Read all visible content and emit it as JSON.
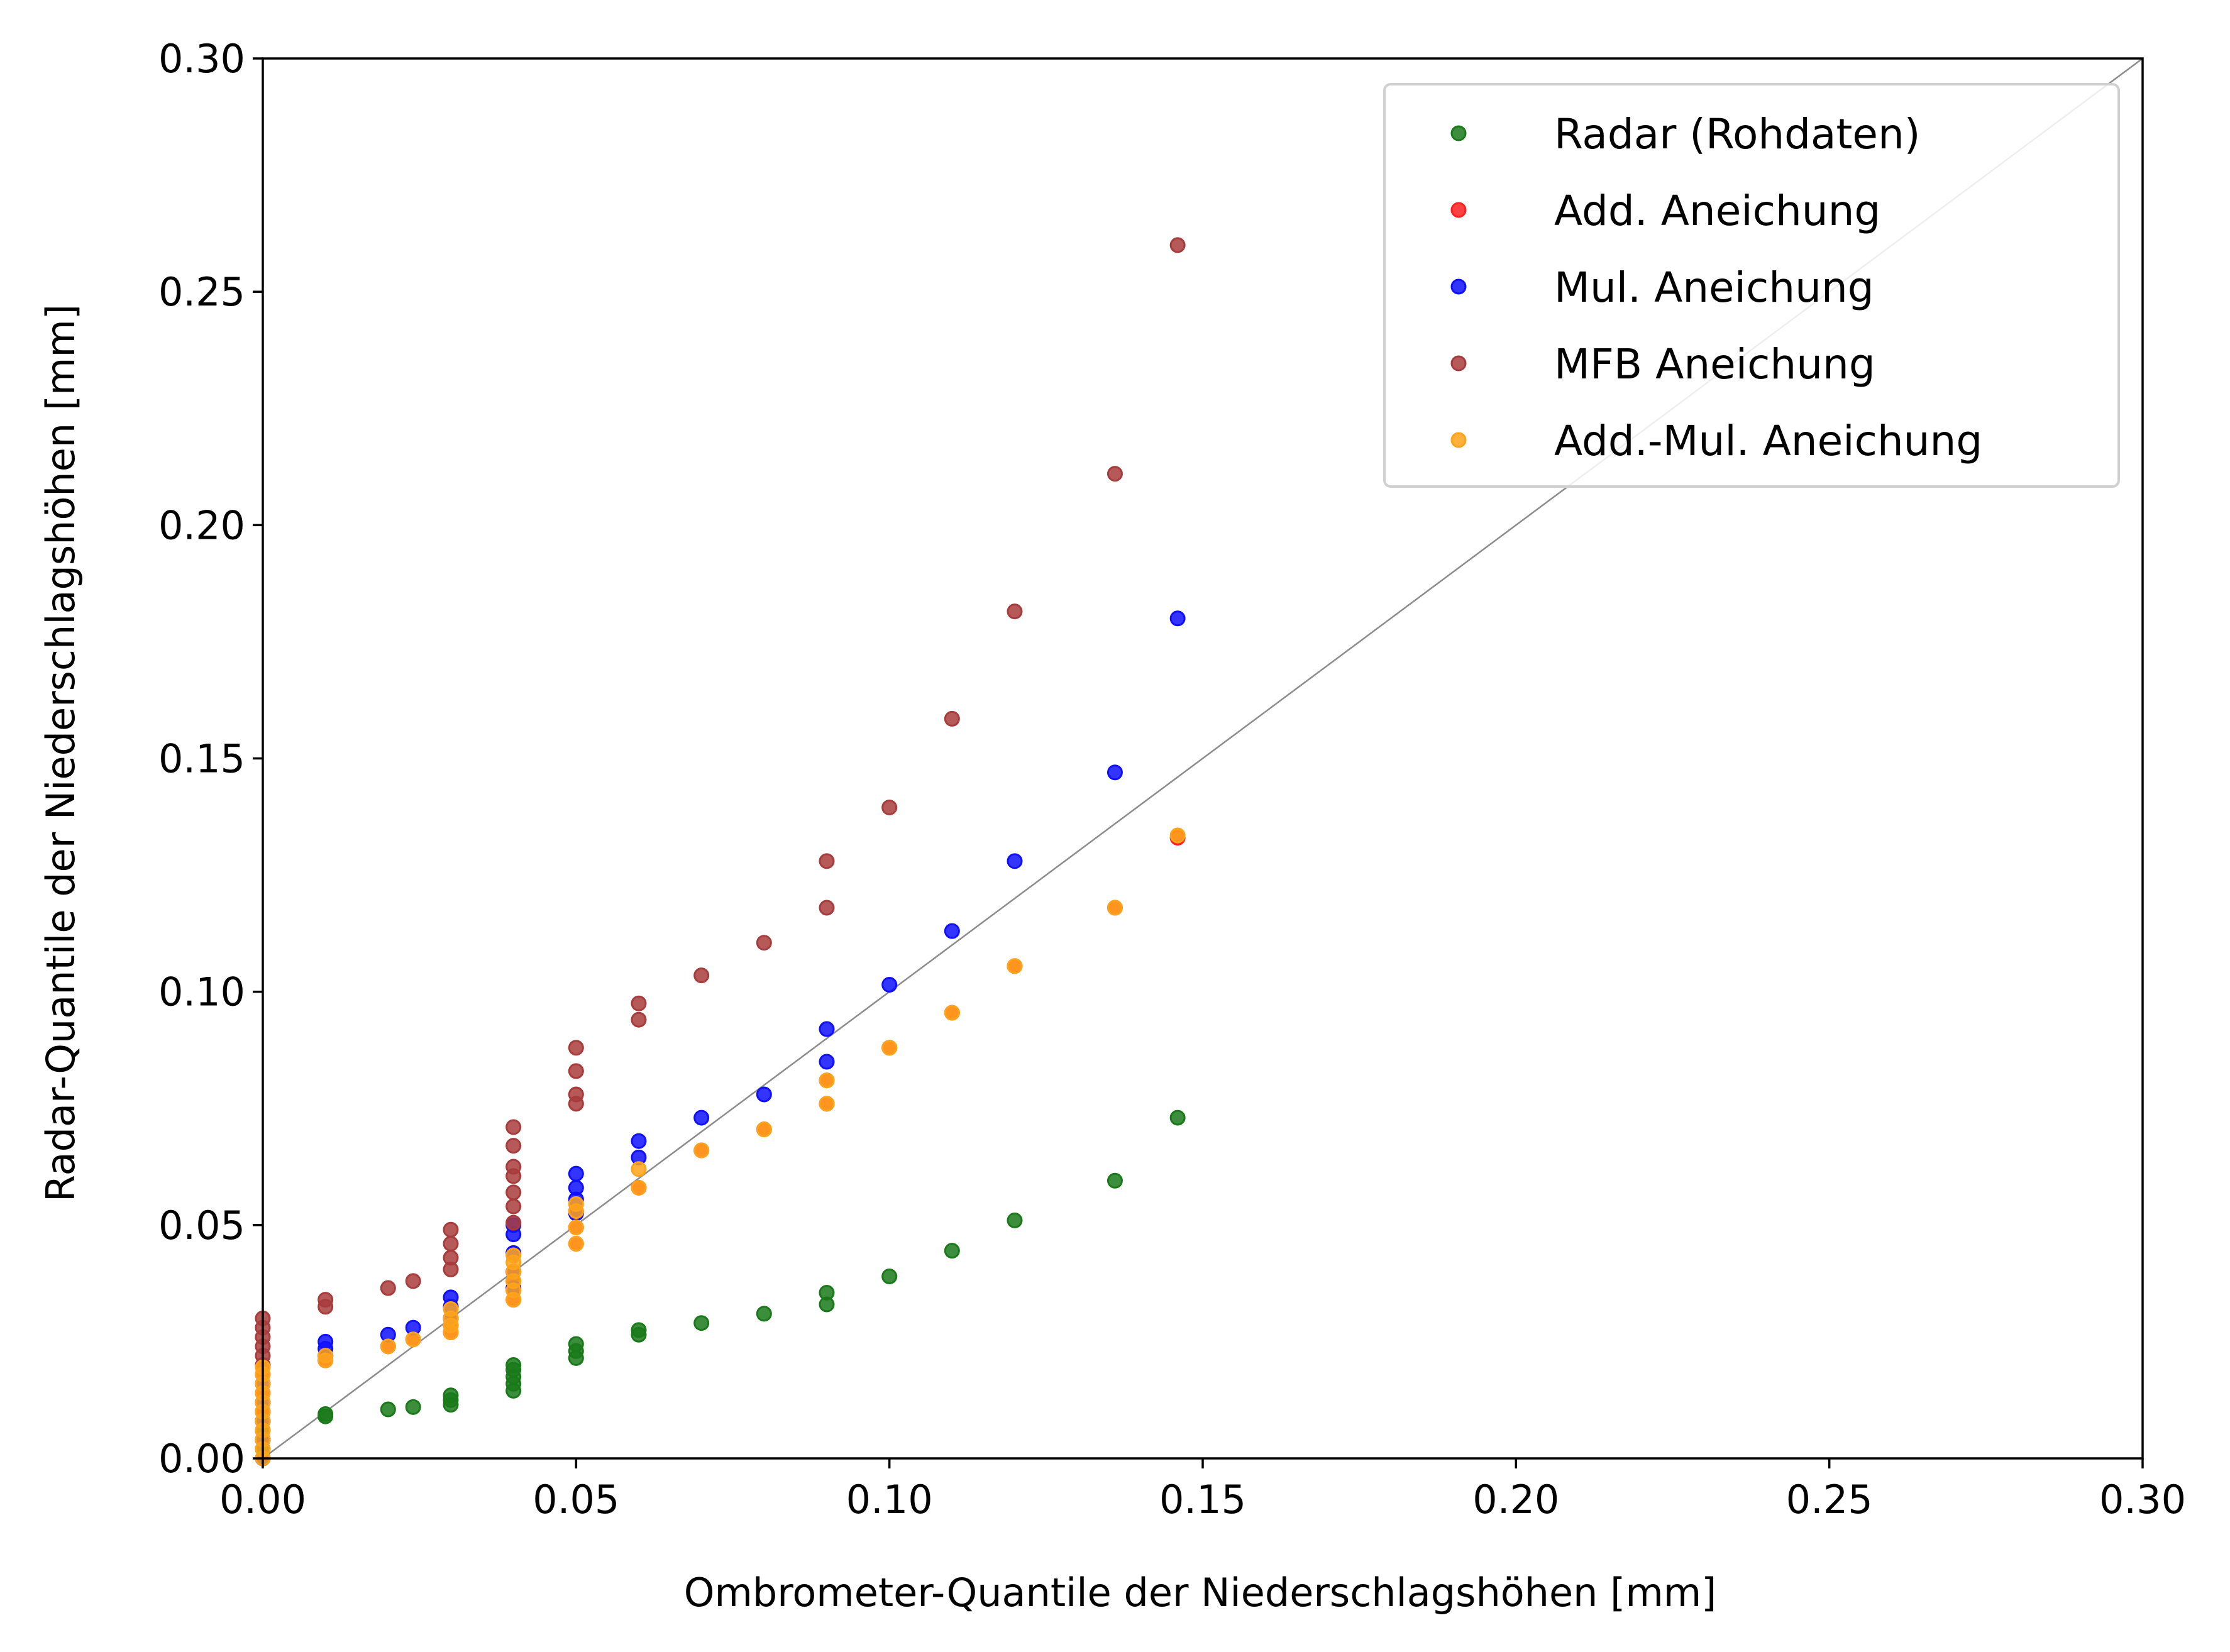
{
  "chart_data": {
    "type": "scatter",
    "xlabel": "Ombrometer-Quantile der Niederschlagshöhen [mm]",
    "ylabel": "Radar-Quantile der Niederschlagshöhen [mm]",
    "xlim": [
      0,
      0.3
    ],
    "ylim": [
      0,
      0.3
    ],
    "x_ticks": [
      "0.00",
      "0.05",
      "0.10",
      "0.15",
      "0.20",
      "0.25",
      "0.30"
    ],
    "y_ticks": [
      "0.00",
      "0.05",
      "0.10",
      "0.15",
      "0.20",
      "0.25",
      "0.30"
    ],
    "grid": false,
    "legend_position": "top-right",
    "reference_line": {
      "type": "identity",
      "color": "#8c8c8c"
    },
    "series": [
      {
        "name": "Radar (Rohdaten)",
        "color": "#1a7a1a",
        "points": [
          [
            0,
            0
          ],
          [
            0,
            0.002
          ],
          [
            0,
            0.004
          ],
          [
            0,
            0.006
          ],
          [
            0,
            0.008
          ],
          [
            0,
            0.01
          ],
          [
            0.01,
            0.009
          ],
          [
            0.01,
            0.0095
          ],
          [
            0.02,
            0.0105
          ],
          [
            0.024,
            0.011
          ],
          [
            0.03,
            0.0115
          ],
          [
            0.03,
            0.0125
          ],
          [
            0.03,
            0.0135
          ],
          [
            0.04,
            0.0145
          ],
          [
            0.04,
            0.016
          ],
          [
            0.04,
            0.0175
          ],
          [
            0.04,
            0.019
          ],
          [
            0.04,
            0.02
          ],
          [
            0.05,
            0.0215
          ],
          [
            0.05,
            0.023
          ],
          [
            0.05,
            0.0245
          ],
          [
            0.06,
            0.0265
          ],
          [
            0.06,
            0.0275
          ],
          [
            0.07,
            0.029
          ],
          [
            0.08,
            0.031
          ],
          [
            0.09,
            0.033
          ],
          [
            0.09,
            0.0355
          ],
          [
            0.1,
            0.039
          ],
          [
            0.11,
            0.0445
          ],
          [
            0.12,
            0.051
          ],
          [
            0.136,
            0.0595
          ],
          [
            0.146,
            0.073
          ]
        ]
      },
      {
        "name": "Add. Aneichung",
        "color": "#ff2020",
        "points": [
          [
            0,
            0.01
          ],
          [
            0,
            0.014
          ],
          [
            0,
            0.018
          ],
          [
            0.01,
            0.021
          ],
          [
            0.01,
            0.022
          ],
          [
            0.02,
            0.024
          ],
          [
            0.024,
            0.0255
          ],
          [
            0.03,
            0.027
          ],
          [
            0.03,
            0.0285
          ],
          [
            0.03,
            0.03
          ],
          [
            0.04,
            0.034
          ],
          [
            0.04,
            0.036
          ],
          [
            0.04,
            0.038
          ],
          [
            0.04,
            0.04
          ],
          [
            0.05,
            0.046
          ],
          [
            0.05,
            0.0495
          ],
          [
            0.05,
            0.053
          ],
          [
            0.06,
            0.058
          ],
          [
            0.07,
            0.066
          ],
          [
            0.08,
            0.0705
          ],
          [
            0.09,
            0.076
          ],
          [
            0.09,
            0.081
          ],
          [
            0.1,
            0.088
          ],
          [
            0.11,
            0.0955
          ],
          [
            0.12,
            0.1055
          ],
          [
            0.136,
            0.118
          ],
          [
            0.146,
            0.133
          ]
        ]
      },
      {
        "name": "Mul. Aneichung",
        "color": "#1010ff",
        "points": [
          [
            0,
            0
          ],
          [
            0,
            0.004
          ],
          [
            0,
            0.008
          ],
          [
            0,
            0.012
          ],
          [
            0,
            0.016
          ],
          [
            0.01,
            0.022
          ],
          [
            0.01,
            0.0235
          ],
          [
            0.01,
            0.025
          ],
          [
            0.02,
            0.0265
          ],
          [
            0.024,
            0.028
          ],
          [
            0.03,
            0.03
          ],
          [
            0.03,
            0.0325
          ],
          [
            0.03,
            0.0345
          ],
          [
            0.04,
            0.0365
          ],
          [
            0.04,
            0.04
          ],
          [
            0.04,
            0.044
          ],
          [
            0.04,
            0.048
          ],
          [
            0.04,
            0.05
          ],
          [
            0.05,
            0.0525
          ],
          [
            0.05,
            0.0555
          ],
          [
            0.05,
            0.058
          ],
          [
            0.05,
            0.061
          ],
          [
            0.06,
            0.0645
          ],
          [
            0.06,
            0.068
          ],
          [
            0.07,
            0.073
          ],
          [
            0.08,
            0.078
          ],
          [
            0.09,
            0.085
          ],
          [
            0.09,
            0.092
          ],
          [
            0.1,
            0.1015
          ],
          [
            0.11,
            0.113
          ],
          [
            0.12,
            0.128
          ],
          [
            0.136,
            0.147
          ],
          [
            0.146,
            0.18
          ]
        ]
      },
      {
        "name": "MFB Aneichung",
        "color": "#a83c3c",
        "points": [
          [
            0,
            0.02
          ],
          [
            0,
            0.022
          ],
          [
            0,
            0.024
          ],
          [
            0,
            0.026
          ],
          [
            0,
            0.028
          ],
          [
            0,
            0.03
          ],
          [
            0.01,
            0.0325
          ],
          [
            0.01,
            0.034
          ],
          [
            0.02,
            0.0365
          ],
          [
            0.024,
            0.038
          ],
          [
            0.03,
            0.0405
          ],
          [
            0.03,
            0.043
          ],
          [
            0.03,
            0.046
          ],
          [
            0.03,
            0.049
          ],
          [
            0.04,
            0.0505
          ],
          [
            0.04,
            0.054
          ],
          [
            0.04,
            0.057
          ],
          [
            0.04,
            0.0605
          ],
          [
            0.04,
            0.0625
          ],
          [
            0.04,
            0.067
          ],
          [
            0.04,
            0.071
          ],
          [
            0.05,
            0.076
          ],
          [
            0.05,
            0.078
          ],
          [
            0.05,
            0.083
          ],
          [
            0.05,
            0.088
          ],
          [
            0.06,
            0.094
          ],
          [
            0.06,
            0.0975
          ],
          [
            0.07,
            0.1035
          ],
          [
            0.08,
            0.1105
          ],
          [
            0.09,
            0.118
          ],
          [
            0.09,
            0.128
          ],
          [
            0.1,
            0.1395
          ],
          [
            0.11,
            0.1585
          ],
          [
            0.12,
            0.1815
          ],
          [
            0.136,
            0.211
          ],
          [
            0.146,
            0.26
          ]
        ]
      },
      {
        "name": "Add.-Mul. Aneichung",
        "color": "#ffa31a",
        "points": [
          [
            0,
            0
          ],
          [
            0,
            0.002
          ],
          [
            0,
            0.004
          ],
          [
            0,
            0.006
          ],
          [
            0,
            0.008
          ],
          [
            0,
            0.01
          ],
          [
            0,
            0.012
          ],
          [
            0,
            0.014
          ],
          [
            0,
            0.016
          ],
          [
            0,
            0.018
          ],
          [
            0,
            0.0195
          ],
          [
            0.01,
            0.021
          ],
          [
            0.01,
            0.022
          ],
          [
            0.02,
            0.024
          ],
          [
            0.024,
            0.0255
          ],
          [
            0.03,
            0.027
          ],
          [
            0.03,
            0.0285
          ],
          [
            0.03,
            0.03
          ],
          [
            0.03,
            0.032
          ],
          [
            0.04,
            0.034
          ],
          [
            0.04,
            0.036
          ],
          [
            0.04,
            0.038
          ],
          [
            0.04,
            0.04
          ],
          [
            0.04,
            0.042
          ],
          [
            0.04,
            0.0435
          ],
          [
            0.05,
            0.046
          ],
          [
            0.05,
            0.0495
          ],
          [
            0.05,
            0.053
          ],
          [
            0.05,
            0.0545
          ],
          [
            0.06,
            0.058
          ],
          [
            0.06,
            0.062
          ],
          [
            0.07,
            0.066
          ],
          [
            0.08,
            0.0705
          ],
          [
            0.09,
            0.076
          ],
          [
            0.09,
            0.081
          ],
          [
            0.1,
            0.088
          ],
          [
            0.11,
            0.0955
          ],
          [
            0.12,
            0.1055
          ],
          [
            0.136,
            0.118
          ],
          [
            0.146,
            0.1335
          ]
        ]
      }
    ]
  }
}
